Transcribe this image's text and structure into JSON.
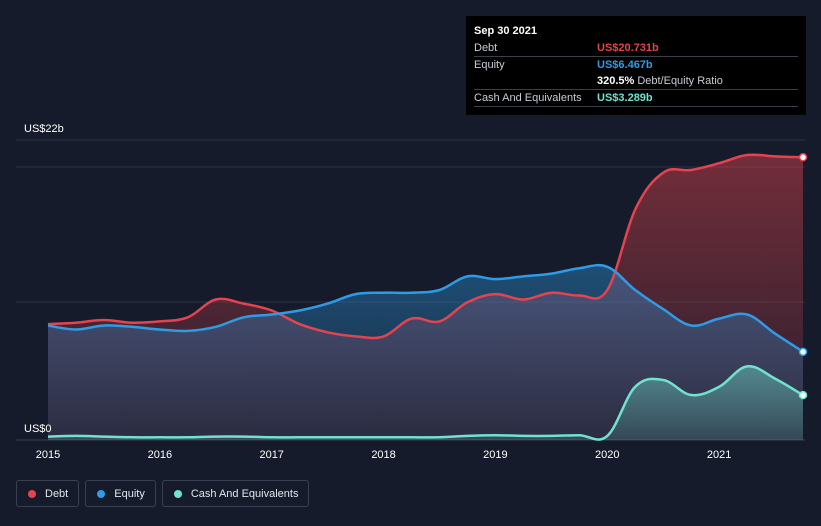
{
  "tooltip": {
    "date": "Sep 30 2021",
    "rows": [
      {
        "label": "Debt",
        "value": "US$20.731b",
        "color": "#e5434e"
      },
      {
        "label": "Equity",
        "value": "US$6.467b",
        "color": "#2e9be6"
      },
      {
        "label": "",
        "value": "320.5%",
        "suffix": "Debt/Equity Ratio",
        "color": "#ffffff"
      },
      {
        "label": "Cash And Equivalents",
        "value": "US$3.289b",
        "color": "#6fe3cf"
      }
    ]
  },
  "legend": [
    {
      "label": "Debt",
      "color": "#e5434e"
    },
    {
      "label": "Equity",
      "color": "#2e9be6"
    },
    {
      "label": "Cash And Equivalents",
      "color": "#6fe3cf"
    }
  ],
  "chart_data": {
    "type": "area",
    "y_unit": "US$ billions",
    "y_top_label": "US$22b",
    "y_bottom_label": "US$0",
    "ylim": [
      0,
      22
    ],
    "xlim": [
      2015.0,
      2021.75
    ],
    "x_ticks": [
      "2015",
      "2016",
      "2017",
      "2018",
      "2019",
      "2020",
      "2021"
    ],
    "grid": true,
    "legend_position": "bottom-left",
    "series": [
      {
        "name": "Debt",
        "color": "#e5434e",
        "x": [
          2015.0,
          2015.25,
          2015.5,
          2015.75,
          2016.0,
          2016.25,
          2016.5,
          2016.75,
          2017.0,
          2017.25,
          2017.5,
          2017.75,
          2018.0,
          2018.25,
          2018.5,
          2018.75,
          2019.0,
          2019.25,
          2019.5,
          2019.75,
          2020.0,
          2020.25,
          2020.5,
          2020.75,
          2021.0,
          2021.25,
          2021.5,
          2021.75
        ],
        "y": [
          8.5,
          8.6,
          8.8,
          8.6,
          8.7,
          9.0,
          10.3,
          10.0,
          9.5,
          8.5,
          7.9,
          7.6,
          7.6,
          8.9,
          8.7,
          10.1,
          10.7,
          10.3,
          10.8,
          10.6,
          11.0,
          16.9,
          19.6,
          19.8,
          20.3,
          20.9,
          20.8,
          20.731
        ]
      },
      {
        "name": "Equity",
        "color": "#2e9be6",
        "x": [
          2015.0,
          2015.25,
          2015.5,
          2015.75,
          2016.0,
          2016.25,
          2016.5,
          2016.75,
          2017.0,
          2017.25,
          2017.5,
          2017.75,
          2018.0,
          2018.25,
          2018.5,
          2018.75,
          2019.0,
          2019.25,
          2019.5,
          2019.75,
          2020.0,
          2020.25,
          2020.5,
          2020.75,
          2021.0,
          2021.25,
          2021.5,
          2021.75
        ],
        "y": [
          8.4,
          8.1,
          8.4,
          8.3,
          8.1,
          8.0,
          8.3,
          9.0,
          9.2,
          9.5,
          10.0,
          10.7,
          10.8,
          10.8,
          11.0,
          12.0,
          11.8,
          12.0,
          12.2,
          12.6,
          12.7,
          11.0,
          9.6,
          8.4,
          8.9,
          9.2,
          7.8,
          6.467
        ]
      },
      {
        "name": "Cash And Equivalents",
        "color": "#6fe3cf",
        "x": [
          2015.0,
          2015.25,
          2015.5,
          2015.75,
          2016.0,
          2016.25,
          2016.5,
          2016.75,
          2017.0,
          2017.25,
          2017.5,
          2017.75,
          2018.0,
          2018.25,
          2018.5,
          2018.75,
          2019.0,
          2019.25,
          2019.5,
          2019.75,
          2020.0,
          2020.25,
          2020.5,
          2020.75,
          2021.0,
          2021.25,
          2021.5,
          2021.75
        ],
        "y": [
          0.25,
          0.3,
          0.25,
          0.2,
          0.2,
          0.2,
          0.25,
          0.25,
          0.2,
          0.2,
          0.2,
          0.2,
          0.2,
          0.2,
          0.2,
          0.3,
          0.35,
          0.3,
          0.3,
          0.35,
          0.3,
          3.9,
          4.4,
          3.3,
          3.9,
          5.4,
          4.5,
          3.289
        ]
      }
    ]
  }
}
